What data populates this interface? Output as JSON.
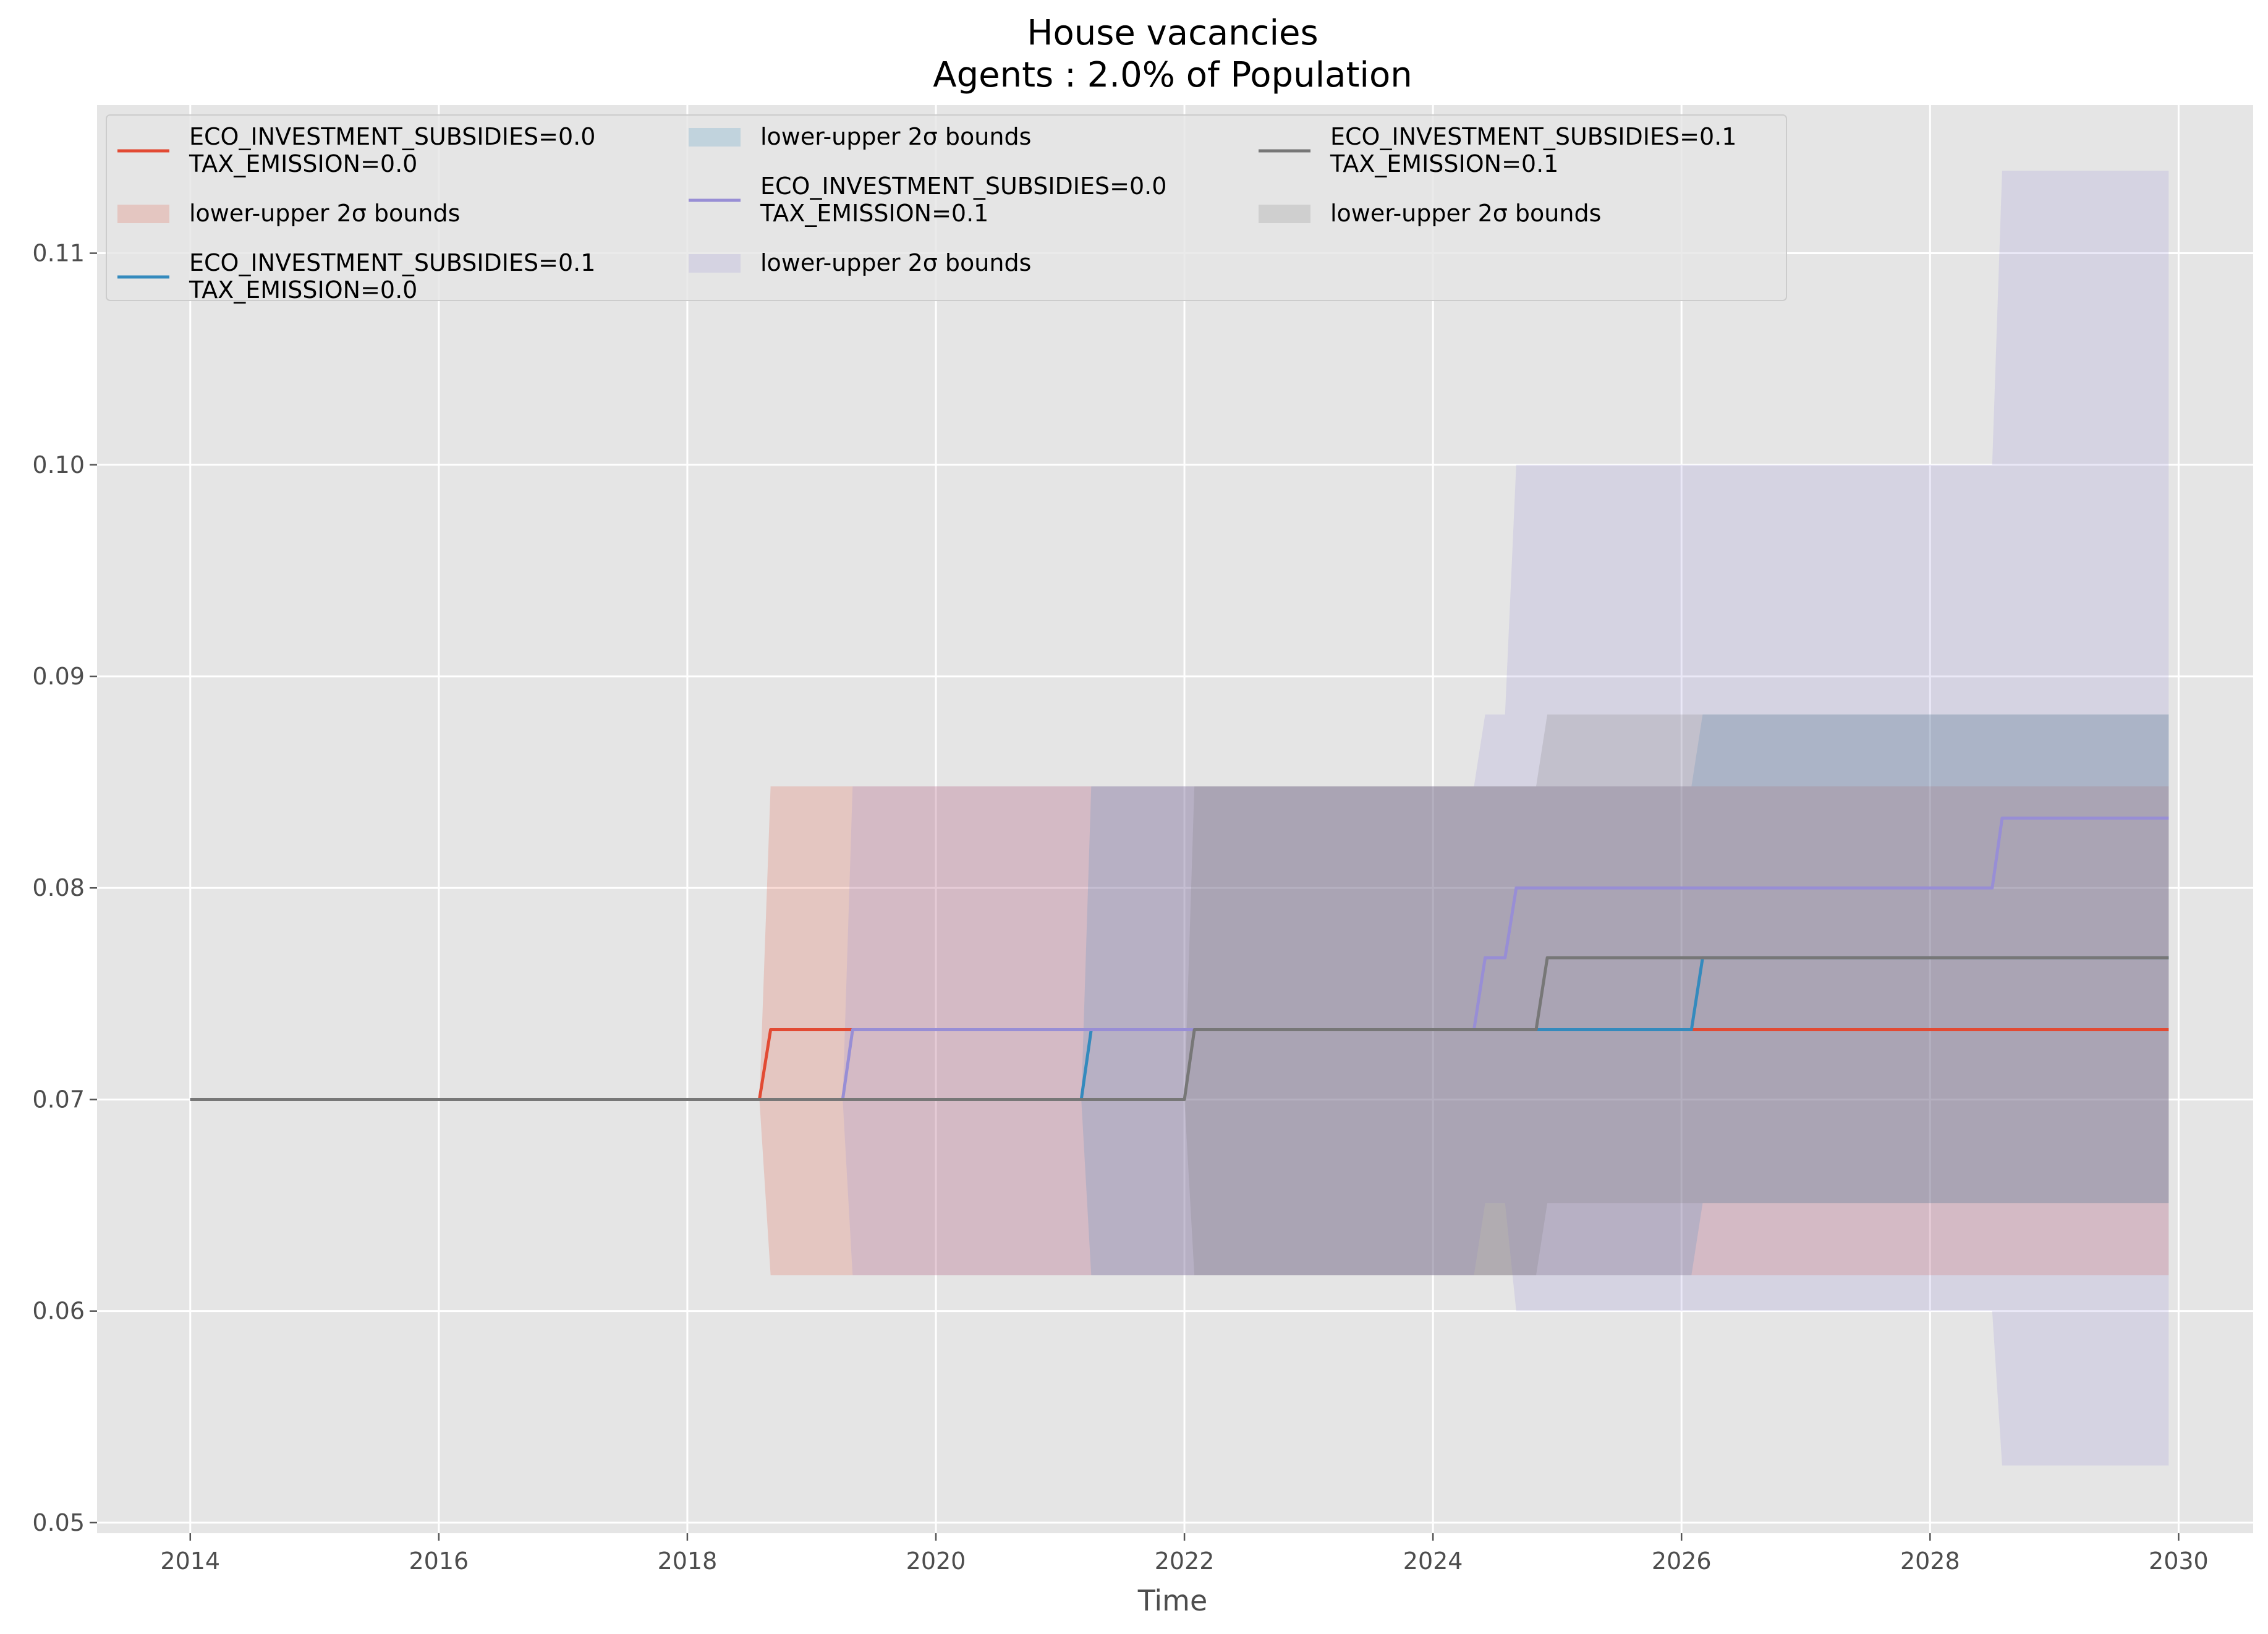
{
  "chart_data": {
    "type": "line",
    "title": "House vacancies",
    "subtitle": "Agents : 2.0% of Population",
    "xlabel": "Time",
    "ylabel": "",
    "xlim": [
      2013.25,
      2030.6
    ],
    "ylim": [
      0.0495,
      0.117
    ],
    "xticks": [
      2014,
      2016,
      2018,
      2020,
      2022,
      2024,
      2026,
      2028,
      2030
    ],
    "xtick_labels": [
      "2014",
      "2016",
      "2018",
      "2020",
      "2022",
      "2024",
      "2026",
      "2028",
      "2030"
    ],
    "yticks": [
      0.05,
      0.06,
      0.07,
      0.08,
      0.09,
      0.1,
      0.11
    ],
    "ytick_labels": [
      "0.05",
      "0.06",
      "0.07",
      "0.08",
      "0.09",
      "0.10",
      "0.11"
    ],
    "grid": true,
    "legend_position": "top-left",
    "legend_columns": 3,
    "series": [
      {
        "name": "ECO_INVESTMENT_SUBSIDIES=0.0\nTAX_EMISSION=0.0",
        "color": "#E24A33",
        "x": [
          2014.0,
          2018.58,
          2018.67,
          2029.92
        ],
        "y": [
          0.07,
          0.07,
          0.0733,
          0.0733
        ],
        "band_label": "lower-upper 2σ bounds",
        "band_x": [
          2018.58,
          2018.67,
          2029.92
        ],
        "band_lower": [
          0.07,
          0.0617,
          0.0617
        ],
        "band_upper": [
          0.07,
          0.0848,
          0.0848
        ]
      },
      {
        "name": "ECO_INVESTMENT_SUBSIDIES=0.1\nTAX_EMISSION=0.0",
        "color": "#348ABD",
        "x": [
          2014.0,
          2021.17,
          2021.25,
          2026.08,
          2026.17,
          2029.92
        ],
        "y": [
          0.07,
          0.07,
          0.0733,
          0.0733,
          0.0767,
          0.0767
        ],
        "band_label": "lower-upper 2σ bounds",
        "band_x": [
          2021.17,
          2021.25,
          2026.08,
          2026.17,
          2029.92
        ],
        "band_lower": [
          0.07,
          0.0617,
          0.0617,
          0.0651,
          0.0651
        ],
        "band_upper": [
          0.07,
          0.0848,
          0.0848,
          0.0882,
          0.0882
        ]
      },
      {
        "name": "ECO_INVESTMENT_SUBSIDIES=0.0\nTAX_EMISSION=0.1",
        "color": "#988ED5",
        "x": [
          2014.0,
          2019.25,
          2019.33,
          2024.33,
          2024.42,
          2024.58,
          2024.67,
          2028.5,
          2028.58,
          2029.92
        ],
        "y": [
          0.07,
          0.07,
          0.0733,
          0.0733,
          0.0767,
          0.0767,
          0.08,
          0.08,
          0.0833,
          0.0833
        ],
        "band_label": "lower-upper 2σ bounds",
        "band_x": [
          2019.25,
          2019.33,
          2024.33,
          2024.42,
          2024.58,
          2024.67,
          2028.5,
          2028.58,
          2029.92
        ],
        "band_lower": [
          0.07,
          0.0617,
          0.0617,
          0.0651,
          0.0651,
          0.06,
          0.06,
          0.0527,
          0.0527
        ],
        "band_upper": [
          0.07,
          0.0848,
          0.0848,
          0.0882,
          0.0882,
          0.1,
          0.1,
          0.1139,
          0.1139
        ]
      },
      {
        "name": "ECO_INVESTMENT_SUBSIDIES=0.1\nTAX_EMISSION=0.1",
        "color": "#777777",
        "x": [
          2014.0,
          2022.0,
          2022.08,
          2024.83,
          2024.92,
          2029.92
        ],
        "y": [
          0.07,
          0.07,
          0.0733,
          0.0733,
          0.0767,
          0.0767
        ],
        "band_label": "lower-upper 2σ bounds",
        "band_x": [
          2022.0,
          2022.08,
          2024.83,
          2024.92,
          2029.92
        ],
        "band_lower": [
          0.07,
          0.0617,
          0.0617,
          0.0651,
          0.0651
        ],
        "band_upper": [
          0.07,
          0.0848,
          0.0848,
          0.0882,
          0.0882
        ]
      }
    ]
  }
}
